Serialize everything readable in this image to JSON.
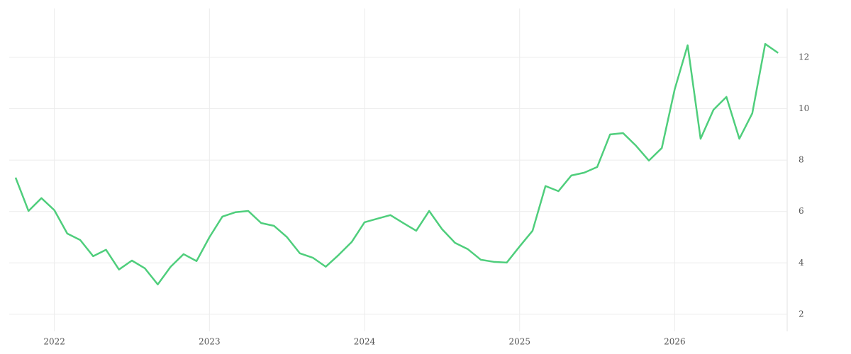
{
  "chart_data": {
    "type": "line",
    "x": [
      2021.75,
      2021.8333,
      2021.9167,
      2022,
      2022.0833,
      2022.1667,
      2022.25,
      2022.3333,
      2022.4167,
      2022.5,
      2022.5833,
      2022.6667,
      2022.75,
      2022.8333,
      2022.9167,
      2023,
      2023.0833,
      2023.1667,
      2023.25,
      2023.3333,
      2023.4167,
      2023.5,
      2023.5833,
      2023.6667,
      2023.75,
      2023.8333,
      2023.9167,
      2024,
      2024.0833,
      2024.1667,
      2024.25,
      2024.3333,
      2024.4167,
      2024.5,
      2024.5833,
      2024.6667,
      2024.75,
      2024.8333,
      2024.9167,
      2025,
      2025.0833,
      2025.1667,
      2025.25,
      2025.3333,
      2025.4167,
      2025.5,
      2025.5833,
      2025.6667,
      2025.75,
      2025.8333,
      2025.9167,
      2026,
      2026.0833,
      2026.1667,
      2026.25,
      2026.3333,
      2026.4167,
      2026.5,
      2026.5833,
      2026.6667
    ],
    "series": [
      {
        "color": "#4fce7c",
        "values": [
          7.32,
          6.02,
          6.52,
          6.05,
          5.14,
          4.89,
          4.26,
          4.51,
          3.74,
          4.09,
          3.79,
          3.16,
          3.85,
          4.34,
          4.07,
          5.0,
          5.8,
          5.97,
          6.02,
          5.55,
          5.44,
          5.0,
          4.37,
          4.2,
          3.85,
          4.31,
          4.81,
          5.58,
          5.72,
          5.86,
          5.55,
          5.25,
          6.02,
          5.31,
          4.78,
          4.53,
          4.12,
          4.04,
          4.01,
          4.64,
          5.25,
          6.99,
          6.79,
          7.4,
          7.51,
          7.73,
          9.0,
          9.05,
          8.56,
          7.98,
          8.47,
          10.76,
          12.47,
          8.83,
          9.96,
          10.46,
          8.83,
          9.82,
          12.52,
          12.17
        ]
      }
    ],
    "xlim": [
      2021.709,
      2026.725
    ],
    "xticks": [
      2022,
      2023,
      2024,
      2025,
      2026
    ],
    "ylim": [
      1.5,
      13.9
    ],
    "yticks": [
      2,
      4,
      6,
      8,
      10,
      12
    ],
    "grid": true
  }
}
